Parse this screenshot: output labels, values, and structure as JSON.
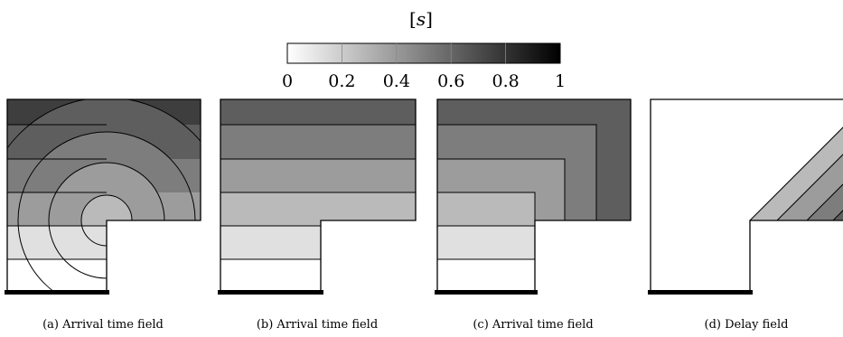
{
  "colorbar": {
    "unit_open": "[",
    "unit_symbol": "s",
    "unit_close": "]",
    "ticks": [
      "0",
      "0.2",
      "0.4",
      "0.6",
      "0.8",
      "1"
    ],
    "range": [
      0,
      1
    ],
    "levels": 5
  },
  "panels": [
    {
      "caption": "(a) Arrival time field"
    },
    {
      "caption": "(b) Arrival time field"
    },
    {
      "caption": "(c) Arrival time field"
    },
    {
      "caption": "(d) Delay field"
    }
  ],
  "colors": {
    "band_fills": [
      "#ffffff",
      "#e0e0e0",
      "#bababa",
      "#9c9c9c",
      "#7d7d7d",
      "#5e5e5e",
      "#3e3e3e"
    ],
    "outline": "#000000"
  }
}
